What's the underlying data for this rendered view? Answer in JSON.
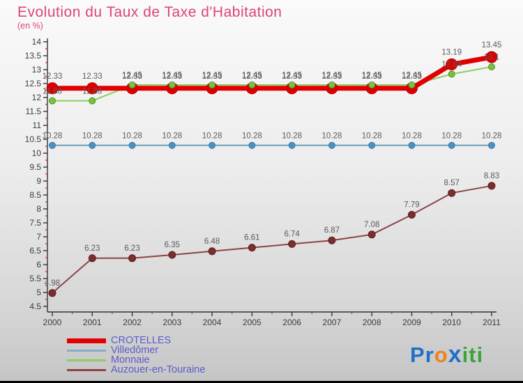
{
  "title": "Evolution du Taux de Taxe d'Habitation",
  "subtitle": "(en %)",
  "chart_data": {
    "type": "line",
    "x": [
      2000,
      2001,
      2002,
      2003,
      2004,
      2005,
      2006,
      2007,
      2008,
      2009,
      2010,
      2011
    ],
    "ylim": [
      4.5,
      14
    ],
    "ytick_step": 0.5,
    "grid": false,
    "legend_position": "bottom-left",
    "axis_color": "#333333",
    "minor_tick_color": "#cc2222",
    "label_color": "#5b5b5b",
    "series": [
      {
        "name": "CROTELLES",
        "color": "#e10000",
        "line_width": 7,
        "marker_radius": 8,
        "marker_fill": "#dd0000",
        "marker_stroke": "#b50000",
        "values": [
          12.33,
          12.33,
          12.33,
          12.33,
          12.33,
          12.33,
          12.33,
          12.33,
          12.33,
          12.33,
          13.19,
          13.45
        ]
      },
      {
        "name": "Villedômer",
        "color": "#85aec9",
        "line_width": 2.5,
        "marker_radius": 4.5,
        "marker_fill": "#4e8fc0",
        "marker_stroke": "#3d7bab",
        "values": [
          10.28,
          10.28,
          10.28,
          10.28,
          10.28,
          10.28,
          10.28,
          10.28,
          10.28,
          10.28,
          10.28,
          10.28
        ]
      },
      {
        "name": "Monnaie",
        "color": "#90cd60",
        "line_width": 2,
        "marker_radius": 4.5,
        "marker_fill": "#79c141",
        "marker_stroke": "#4e9327",
        "values": [
          11.88,
          11.88,
          12.45,
          12.45,
          12.45,
          12.45,
          12.45,
          12.45,
          12.45,
          12.45,
          12.84,
          13.1
        ]
      },
      {
        "name": "Auzouer-en-Touraine",
        "color": "#8d4346",
        "line_width": 2,
        "marker_radius": 5,
        "marker_fill": "#7a2e2e",
        "marker_stroke": "#5d2020",
        "values": [
          4.98,
          6.23,
          6.23,
          6.35,
          6.48,
          6.61,
          6.74,
          6.87,
          7.08,
          7.79,
          8.57,
          8.83
        ]
      }
    ]
  },
  "legend": {
    "items": [
      {
        "label": "CROTELLES"
      },
      {
        "label": "Villedômer"
      },
      {
        "label": "Monnaie"
      },
      {
        "label": "Auzouer-en-Touraine"
      }
    ]
  },
  "logo": {
    "letters": [
      {
        "char": "P",
        "color": "#2170c8"
      },
      {
        "char": "r",
        "color": "#2170c8"
      },
      {
        "char": "o",
        "color": "#f0821e"
      },
      {
        "char": "x",
        "color": "#2170c8",
        "x": true
      },
      {
        "char": "i",
        "color": "#3ba53b"
      },
      {
        "char": "t",
        "color": "#3ba53b"
      },
      {
        "char": "i",
        "color": "#3ba53b"
      }
    ]
  }
}
